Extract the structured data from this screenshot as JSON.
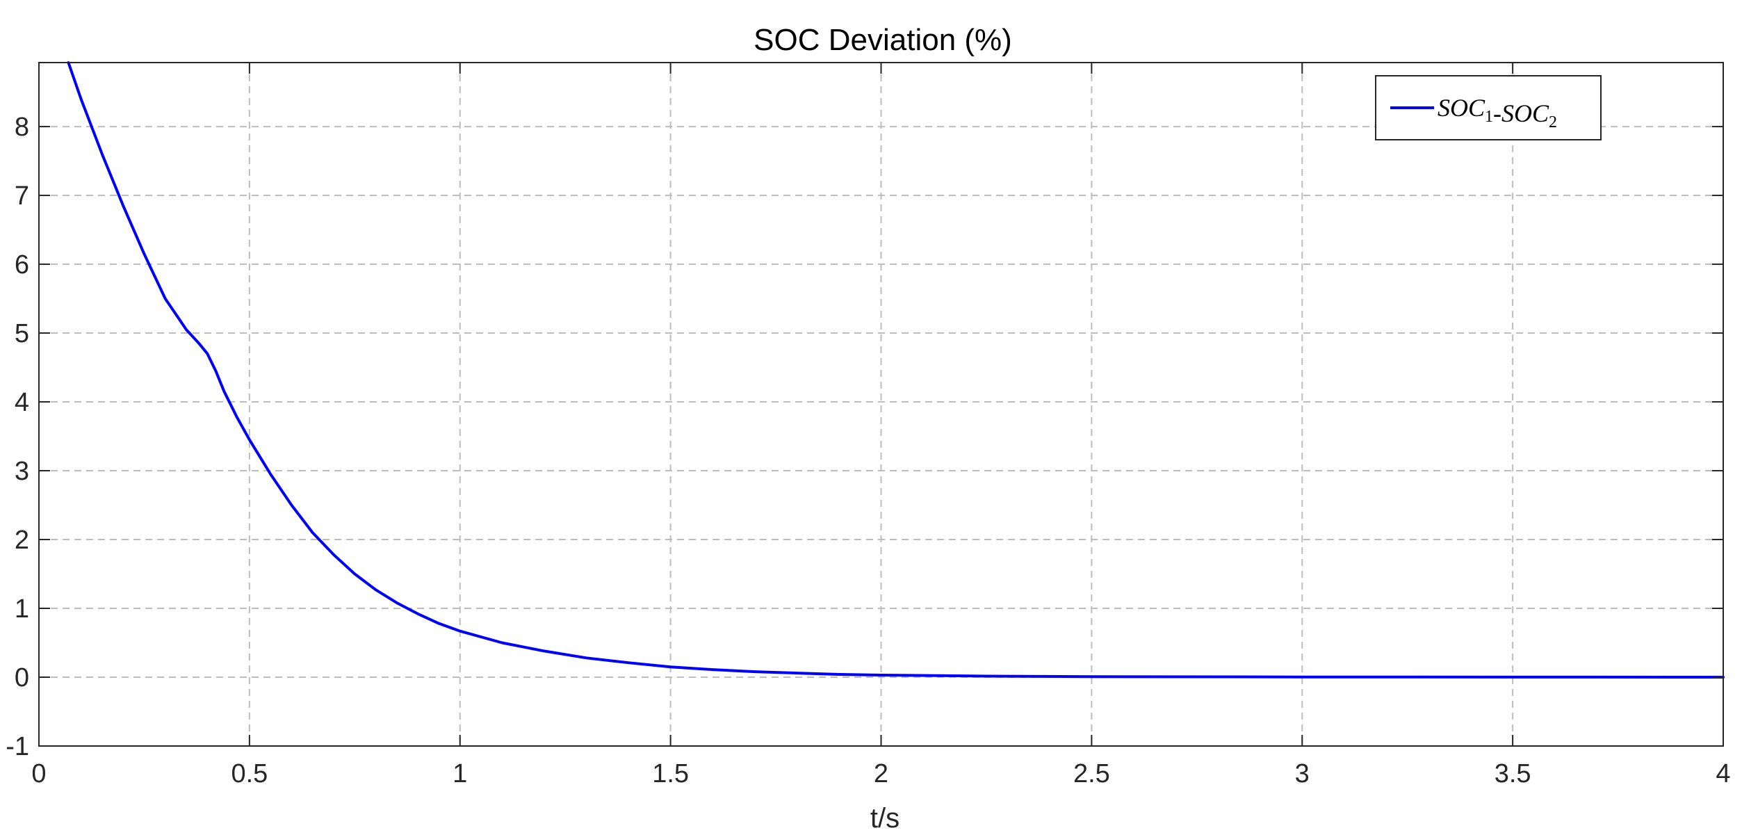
{
  "chart_data": {
    "type": "line",
    "title": "SOC Deviation (%)",
    "xlabel": "t/s",
    "ylabel": "",
    "xlim": [
      0,
      4
    ],
    "ylim": [
      -1,
      8.93
    ],
    "xticks": [
      0,
      0.5,
      1,
      1.5,
      2,
      2.5,
      3,
      3.5,
      4
    ],
    "xtick_labels": [
      "0",
      "0.5",
      "1",
      "1.5",
      "2",
      "2.5",
      "3",
      "3.5",
      "4"
    ],
    "yticks": [
      -1,
      0,
      1,
      2,
      3,
      4,
      5,
      6,
      7,
      8
    ],
    "ytick_labels": [
      "-1",
      "0",
      "1",
      "2",
      "3",
      "4",
      "5",
      "6",
      "7",
      "8"
    ],
    "grid": true,
    "legend_position": "top-right",
    "legend": {
      "label_parts": [
        {
          "text": "SOC",
          "sub": "1"
        },
        {
          "text": "-",
          "sub": ""
        },
        {
          "text": "SOC",
          "sub": "2"
        }
      ]
    },
    "series": [
      {
        "name": "SOC1-SOC2",
        "color": "#0000ff",
        "x": [
          0.07,
          0.1,
          0.15,
          0.2,
          0.25,
          0.3,
          0.35,
          0.38,
          0.4,
          0.42,
          0.44,
          0.47,
          0.5,
          0.55,
          0.6,
          0.65,
          0.7,
          0.75,
          0.8,
          0.85,
          0.9,
          0.95,
          1.0,
          1.1,
          1.2,
          1.3,
          1.4,
          1.5,
          1.6,
          1.7,
          1.8,
          1.9,
          2.0,
          2.25,
          2.5,
          3.0,
          3.5,
          4.0
        ],
        "y": [
          8.93,
          8.4,
          7.6,
          6.85,
          6.15,
          5.5,
          5.05,
          4.85,
          4.7,
          4.45,
          4.15,
          3.78,
          3.45,
          2.95,
          2.5,
          2.1,
          1.78,
          1.5,
          1.27,
          1.08,
          0.92,
          0.78,
          0.67,
          0.5,
          0.38,
          0.28,
          0.21,
          0.15,
          0.11,
          0.08,
          0.06,
          0.04,
          0.03,
          0.015,
          0.008,
          0.003,
          0.001,
          0.0
        ]
      }
    ]
  }
}
